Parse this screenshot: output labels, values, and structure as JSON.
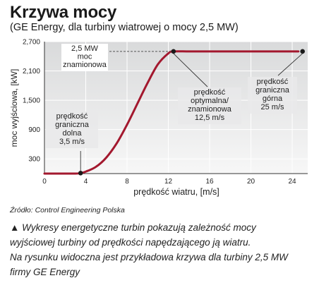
{
  "header": {
    "title": "Krzywa mocy",
    "subtitle": "(GE Energy, dla turbiny wiatrowej o mocy 2,5 MW)"
  },
  "chart_data": {
    "type": "line",
    "title": "Krzywa mocy",
    "subtitle": "(GE Energy, dla turbiny wiatrowej o mocy 2,5 MW)",
    "xlabel": "prędkość wiatru, [m/s]",
    "ylabel": "moc wyjściowa, [kW]",
    "xlim": [
      0,
      25.5
    ],
    "ylim": [
      0,
      2700
    ],
    "x_ticks": [
      "0",
      "4",
      "8",
      "12",
      "16",
      "20",
      "24"
    ],
    "y_ticks": [
      "300",
      "900",
      "1,500",
      "2,100",
      "2,700"
    ],
    "grid": true,
    "series": [
      {
        "name": "",
        "color": "#a3182e",
        "x": [
          0,
          1,
          2,
          3,
          3.5,
          4,
          5,
          6,
          7,
          8,
          9,
          10,
          11,
          12,
          12.5,
          14,
          16,
          18,
          20,
          22,
          24,
          24.6
        ],
        "y": [
          0,
          0,
          0,
          0,
          10,
          40,
          140,
          330,
          620,
          1000,
          1430,
          1860,
          2240,
          2460,
          2500,
          2500,
          2500,
          2500,
          2500,
          2500,
          2500,
          2500
        ]
      }
    ],
    "points": [
      {
        "x": 3.5,
        "y": 10
      },
      {
        "x": 12.5,
        "y": 2500
      },
      {
        "x": 25,
        "y": 2500
      }
    ],
    "annotations": [
      {
        "lines": [
          "2,5 MW",
          "moc",
          "znamionowa"
        ]
      },
      {
        "lines": [
          "prędkość",
          "graniczna",
          "dolna",
          "3,5 m/s"
        ]
      },
      {
        "lines": [
          "prędkość",
          "optymalna/",
          "znamionowa",
          "12,5 m/s"
        ]
      },
      {
        "lines": [
          "prędkość",
          "graniczna",
          "górna",
          "25 m/s"
        ]
      }
    ]
  },
  "source": "Źródło: Control Engineering Polska",
  "caption": {
    "marker": "▲",
    "lines": [
      "Wykresy energetyczne turbin pokazują zależność mocy",
      "wyjściowej turbiny od prędkości napędzającego ją wiatru.",
      "Na rysunku widoczna jest przykładowa krzywa dla turbiny 2,5 MW",
      "firmy GE Energy"
    ]
  }
}
